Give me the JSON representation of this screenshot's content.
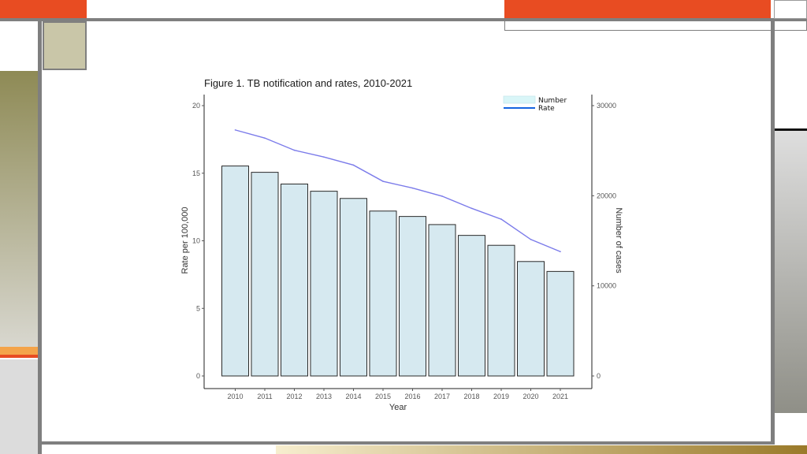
{
  "colors": {
    "accent_orange": "#e84c22",
    "frame_gray": "#7f7f7f",
    "olive": "#8e8a55",
    "khaki": "#c9c6a8",
    "bar_fill": "#d6e9f0",
    "bar_stroke": "#2a2a2a",
    "line": "#7b7bea",
    "legend_number_fill": "#d9f6f8",
    "legend_rate_line": "#1464e0"
  },
  "chart_data": {
    "type": "bar",
    "title": "Figure 1. TB notification and rates, 2010-2021",
    "xlabel": "Year",
    "ylabel": "Rate per 100,000",
    "y2label": "Number of cases",
    "ylim": [
      0,
      20.5
    ],
    "y2lim": [
      0,
      31500
    ],
    "yticks": [
      "0",
      "5",
      "10",
      "15",
      "20"
    ],
    "y2ticks": [
      "0",
      "10000",
      "20000",
      "30000"
    ],
    "categories": [
      "2010",
      "2011",
      "2012",
      "2013",
      "2014",
      "2015",
      "2016",
      "2017",
      "2018",
      "2019",
      "2020",
      "2021"
    ],
    "series": [
      {
        "name": "Number",
        "kind": "bar",
        "axis": "right",
        "values": [
          23300,
          22600,
          21300,
          20500,
          19700,
          18300,
          17700,
          16800,
          15600,
          14500,
          12700,
          11600
        ]
      },
      {
        "name": "Rate",
        "kind": "line",
        "axis": "left",
        "values": [
          18.2,
          17.6,
          16.7,
          16.2,
          15.6,
          14.4,
          13.9,
          13.3,
          12.4,
          11.6,
          10.1,
          9.2
        ]
      }
    ],
    "legend": {
      "position": "top-right",
      "entries": [
        "Number",
        "Rate"
      ]
    },
    "grid": false
  }
}
